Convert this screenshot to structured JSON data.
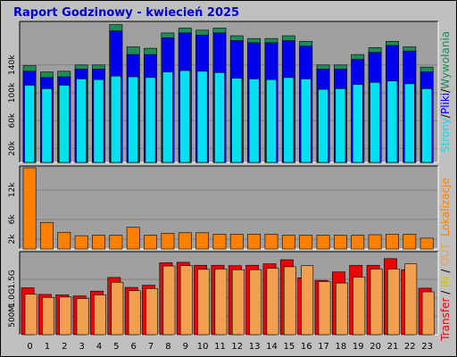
{
  "title": "Raport Godzinowy -   kwiecień 2025",
  "colors": {
    "frame_bg": "#c0c0c0",
    "panel_bg": "#a0a0a0",
    "title": "#0000cc",
    "wyw": "#1e8c56",
    "pliki": "#0000ee",
    "strony": "#00e0f0",
    "lok": "#ff8000",
    "transfer_in": "#ee0000",
    "transfer_out": "#f0a050"
  },
  "chart_data": [
    {
      "type": "bar",
      "categories": [
        "0",
        "1",
        "2",
        "3",
        "4",
        "5",
        "6",
        "7",
        "8",
        "9",
        "10",
        "11",
        "12",
        "13",
        "14",
        "15",
        "16",
        "17",
        "18",
        "19",
        "20",
        "21",
        "22",
        "23"
      ],
      "yticks": [
        "20k",
        "60k",
        "100k",
        "140k"
      ],
      "ytick_values": [
        20000,
        60000,
        100000,
        140000
      ],
      "ylim": [
        0,
        200000
      ],
      "legend": [
        "Strony",
        "Pliki",
        "Wywołania"
      ],
      "legend_separator": "/",
      "series": [
        {
          "name": "Wywołania",
          "values": [
            139000,
            130000,
            131000,
            140000,
            140000,
            198000,
            166000,
            164000,
            186000,
            193000,
            190000,
            193000,
            182000,
            178000,
            178000,
            182000,
            174000,
            140000,
            140000,
            155000,
            165000,
            174000,
            166000,
            137000
          ]
        },
        {
          "name": "Pliki",
          "values": [
            131000,
            122000,
            123000,
            134000,
            134000,
            189000,
            155000,
            155000,
            179000,
            186000,
            183000,
            186000,
            175000,
            172000,
            172000,
            175000,
            167000,
            134000,
            134000,
            148000,
            158000,
            168000,
            160000,
            130000
          ]
        },
        {
          "name": "Strony",
          "values": [
            111000,
            106000,
            111000,
            120000,
            119000,
            124000,
            123000,
            122000,
            130000,
            132000,
            131000,
            129000,
            121000,
            120000,
            119000,
            122000,
            120000,
            105000,
            106000,
            112000,
            115000,
            117000,
            113000,
            106000
          ]
        }
      ]
    },
    {
      "type": "bar",
      "categories": [
        "0",
        "1",
        "2",
        "3",
        "4",
        "5",
        "6",
        "7",
        "8",
        "9",
        "10",
        "11",
        "12",
        "13",
        "14",
        "15",
        "16",
        "17",
        "18",
        "19",
        "20",
        "21",
        "22",
        "23"
      ],
      "yticks": [
        "2k",
        "6k",
        "12k"
      ],
      "ytick_values": [
        2000,
        6000,
        12000
      ],
      "ylim": [
        0,
        16500
      ],
      "legend": [
        "Lokalizacje"
      ],
      "series": [
        {
          "name": "Lokalizacje",
          "values": [
            16500,
            5400,
            3400,
            2700,
            2800,
            2800,
            4400,
            2800,
            3200,
            3300,
            3300,
            3000,
            3000,
            3000,
            3000,
            2800,
            2800,
            2800,
            2800,
            2800,
            2900,
            3000,
            3000,
            2200
          ]
        }
      ]
    },
    {
      "type": "bar",
      "categories": [
        "0",
        "1",
        "2",
        "3",
        "4",
        "5",
        "6",
        "7",
        "8",
        "9",
        "10",
        "11",
        "12",
        "13",
        "14",
        "15",
        "16",
        "17",
        "18",
        "19",
        "20",
        "21",
        "22",
        "23"
      ],
      "yticks": [
        "500M",
        "1.0G",
        "1.5G"
      ],
      "ytick_values": [
        500,
        1000,
        1500
      ],
      "ylim": [
        0,
        2200
      ],
      "legend": [
        "Transfer",
        "IN",
        "OUT"
      ],
      "legend_separator": " / ",
      "series": [
        {
          "name": "IN",
          "values": [
            1270,
            1090,
            1080,
            1050,
            1180,
            1550,
            1280,
            1340,
            1950,
            1960,
            1880,
            1880,
            1870,
            1880,
            1920,
            2030,
            1540,
            1470,
            1700,
            1880,
            1880,
            2060,
            1760,
            1260
          ]
        },
        {
          "name": "OUT",
          "values": [
            1100,
            1010,
            1020,
            980,
            1080,
            1420,
            1190,
            1250,
            1860,
            1870,
            1770,
            1780,
            1760,
            1760,
            1800,
            1840,
            1870,
            1440,
            1400,
            1560,
            1780,
            1780,
            1920,
            1160
          ]
        }
      ]
    }
  ]
}
